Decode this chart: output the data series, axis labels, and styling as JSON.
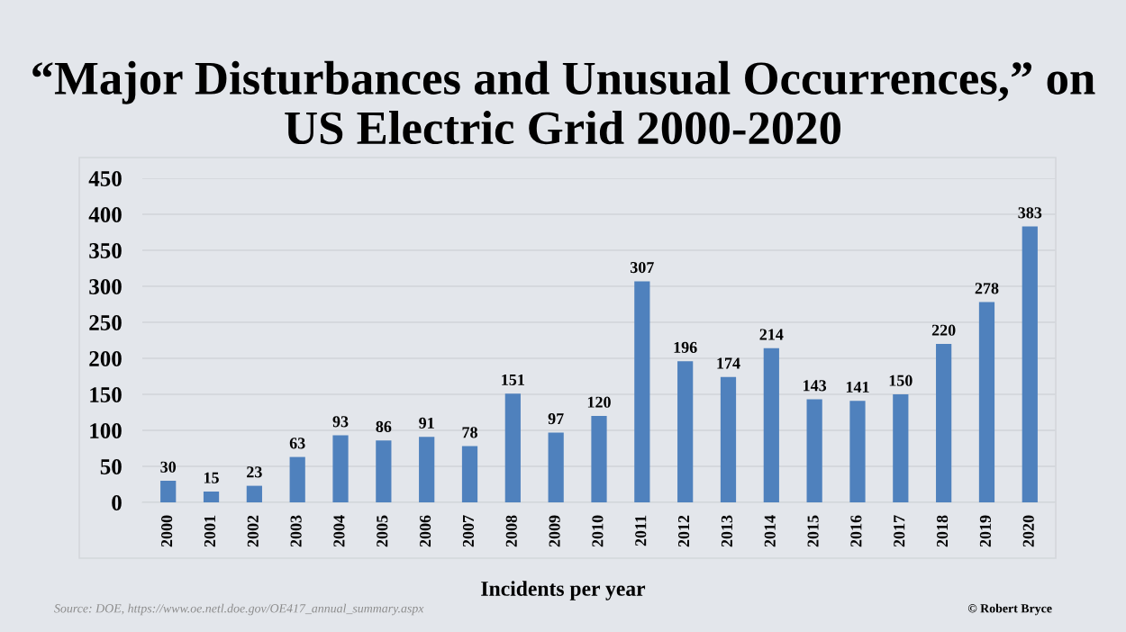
{
  "chart_data": {
    "type": "bar",
    "title": "“Major Disturbances and Unusual Occurrences,” on US Electric Grid 2000-2020",
    "xlabel": "Incidents per year",
    "categories": [
      "2000",
      "2001",
      "2002",
      "2003",
      "2004",
      "2005",
      "2006",
      "2007",
      "2008",
      "2009",
      "2010",
      "2011",
      "2012",
      "2013",
      "2014",
      "2015",
      "2016",
      "2017",
      "2018",
      "2019",
      "2020"
    ],
    "values": [
      30,
      15,
      23,
      63,
      93,
      86,
      91,
      78,
      151,
      97,
      120,
      307,
      196,
      174,
      214,
      143,
      141,
      150,
      220,
      278,
      383
    ],
    "color": "#4f81bd",
    "ylim": [
      0,
      450
    ],
    "yticks": [
      0,
      50,
      100,
      150,
      200,
      250,
      300,
      350,
      400,
      450
    ],
    "grid": "y",
    "data_labels": true,
    "annotations": [
      "Source: DOE, https://www.oe.netl.doe.gov/OE417_annual_summary.aspx",
      "© Robert Bryce"
    ]
  }
}
